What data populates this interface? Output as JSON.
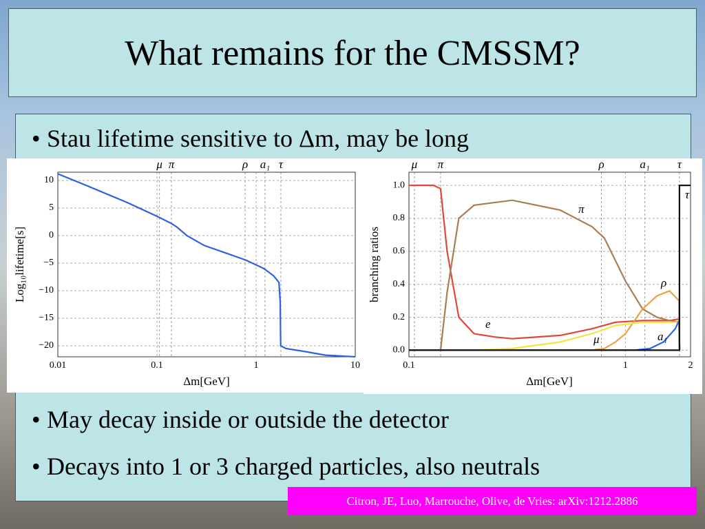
{
  "title": "What remains for the CMSSM?",
  "bullets": [
    "Stau lifetime sensitive to Δm, may be long",
    "May decay inside or outside the detector",
    "Decays into 1 or 3 charged particles, also neutrals"
  ],
  "citation": "Citron, JE, Luo, Marrouche, Olive, de Vries: arXiv:1212.2886",
  "chart_data": [
    {
      "type": "line",
      "xlabel": "Δm[GeV]",
      "ylabel": "Log₁₀lifetime[s]",
      "xscale": "log",
      "grid": true,
      "xlim": [
        0.01,
        10
      ],
      "xticks": [
        0.01,
        0.1,
        1,
        10
      ],
      "ylim": [
        -22,
        11.5
      ],
      "yticks": [
        10,
        5,
        0,
        {
          "value": -5,
          "label": "−5"
        },
        {
          "value": -10,
          "label": "−10"
        },
        {
          "value": -15,
          "label": "−15"
        },
        {
          "value": -20,
          "label": "−20"
        }
      ],
      "annotations": [
        {
          "text": "μ",
          "x": 0.106
        },
        {
          "text": "π",
          "x": 0.14
        },
        {
          "text": "ρ",
          "x": 0.775
        },
        {
          "text": "a₁",
          "x": 1.23
        },
        {
          "text": "τ",
          "x": 1.777
        }
      ],
      "series": [
        {
          "color": "#2a62e0",
          "x": [
            0.01,
            0.02,
            0.05,
            0.1,
            0.14,
            0.16,
            0.2,
            0.3,
            0.5,
            0.8,
            1.2,
            1.5,
            1.7,
            1.75,
            1.77,
            2,
            3,
            5,
            10
          ],
          "values": [
            11.2,
            9,
            6,
            3.5,
            2.2,
            1.5,
            0,
            -1.8,
            -3.2,
            -4.5,
            -6,
            -7.3,
            -8.5,
            -12,
            -20,
            -20.5,
            -21,
            -21.7,
            -22
          ]
        }
      ]
    },
    {
      "type": "line",
      "xlabel": "Δm[GeV]",
      "ylabel": "branching ratios",
      "xscale": "log",
      "grid": true,
      "xlim": [
        0.1,
        2
      ],
      "xticks": [
        0.1,
        1,
        2
      ],
      "ylim": [
        -0.04,
        1.08
      ],
      "yticks": [
        {
          "value": 0,
          "label": "0.0"
        },
        0.2,
        0.4,
        0.6,
        0.8,
        {
          "value": 1,
          "label": "1.0"
        }
      ],
      "annotations": [
        {
          "text": "μ",
          "x": 0.106
        },
        {
          "text": "π",
          "x": 0.14
        },
        {
          "text": "ρ",
          "x": 0.775
        },
        {
          "text": "a₁",
          "x": 1.23
        },
        {
          "text": "τ",
          "x": 1.777
        }
      ],
      "series": [
        {
          "name": "e",
          "color": "#e0463c",
          "x": [
            0.1,
            0.13,
            0.14,
            0.15,
            0.17,
            0.2,
            0.25,
            0.3,
            0.5,
            0.7,
            0.9,
            1.2,
            1.6,
            1.77,
            1.78
          ],
          "values": [
            1,
            1,
            0.98,
            0.6,
            0.2,
            0.1,
            0.08,
            0.07,
            0.09,
            0.13,
            0.17,
            0.18,
            0.18,
            0.19,
            0
          ]
        },
        {
          "name": "π",
          "color": "#a87c55",
          "x": [
            0.1,
            0.14,
            0.15,
            0.17,
            0.2,
            0.3,
            0.5,
            0.7,
            0.8,
            1,
            1.2,
            1.4,
            1.6,
            1.77,
            1.78
          ],
          "values": [
            0,
            0,
            0.35,
            0.8,
            0.88,
            0.91,
            0.85,
            0.75,
            0.68,
            0.42,
            0.25,
            0.2,
            0.18,
            0.17,
            0
          ]
        },
        {
          "name": "ρ",
          "color": "#f0a040",
          "x": [
            0.1,
            0.7,
            0.8,
            0.9,
            1,
            1.2,
            1.4,
            1.6,
            1.77,
            1.78
          ],
          "values": [
            0,
            0,
            0.01,
            0.05,
            0.1,
            0.25,
            0.33,
            0.36,
            0.3,
            0
          ]
        },
        {
          "name": "μ",
          "color": "#f2e640",
          "x": [
            0.1,
            0.2,
            0.3,
            0.5,
            0.7,
            0.9,
            1.2,
            1.6,
            1.77,
            1.78
          ],
          "values": [
            0,
            0,
            0.01,
            0.05,
            0.1,
            0.15,
            0.17,
            0.17,
            0.17,
            0
          ]
        },
        {
          "name": "a₁",
          "color": "#2a62e0",
          "x": [
            0.1,
            1.1,
            1.3,
            1.5,
            1.7,
            1.77,
            1.78
          ],
          "values": [
            0,
            0,
            0.01,
            0.05,
            0.13,
            0.18,
            0
          ]
        },
        {
          "name": "τ",
          "color": "#111111",
          "x": [
            0.1,
            1.777,
            1.777,
            2
          ],
          "values": [
            0,
            0,
            1,
            1
          ]
        }
      ]
    }
  ]
}
